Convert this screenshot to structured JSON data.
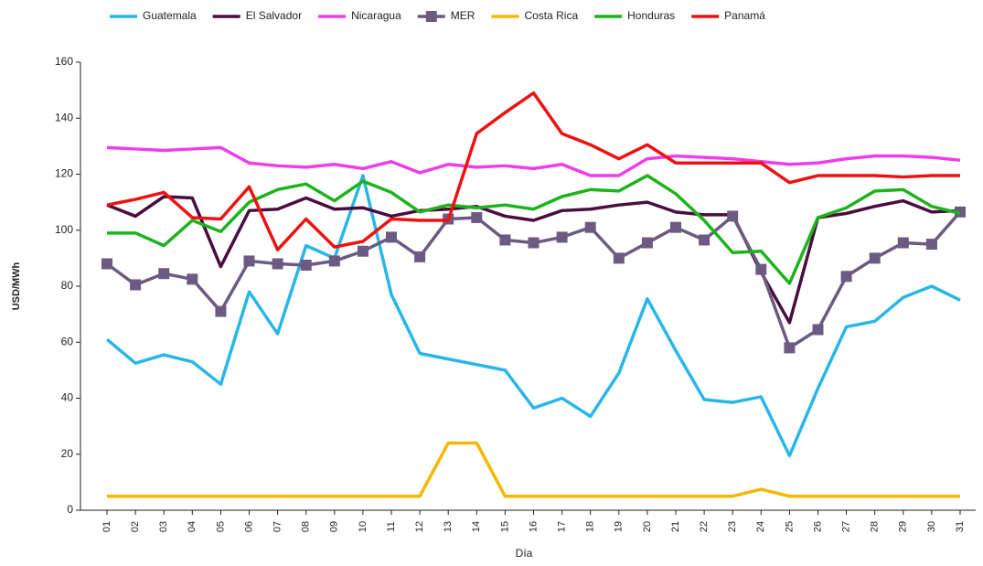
{
  "chart_data": {
    "type": "line",
    "categories": [
      "01",
      "02",
      "03",
      "04",
      "05",
      "06",
      "07",
      "08",
      "09",
      "10",
      "11",
      "12",
      "13",
      "14",
      "15",
      "16",
      "17",
      "18",
      "19",
      "20",
      "21",
      "22",
      "23",
      "24",
      "25",
      "26",
      "27",
      "28",
      "29",
      "30",
      "31"
    ],
    "x_label": "Día",
    "y_label": "USD/MWh",
    "ylim": [
      0,
      160
    ],
    "yticks": [
      0,
      20,
      40,
      60,
      80,
      100,
      120,
      140,
      160
    ],
    "series": [
      {
        "name": "Guatemala",
        "color": "#29b6e8",
        "values": [
          61,
          52.5,
          55.5,
          53,
          45,
          78,
          63,
          94.5,
          90,
          119.5,
          77,
          56,
          54,
          52,
          50,
          36.5,
          40,
          33.5,
          49,
          75.5,
          57,
          39.5,
          38.5,
          40.5,
          19.5,
          43.5,
          65.5,
          67.5,
          76,
          80,
          75
        ]
      },
      {
        "name": "El Salvador",
        "color": "#4a0d3f",
        "values": [
          109,
          105,
          112,
          111.5,
          87,
          107,
          107.5,
          111.5,
          107.5,
          108,
          105,
          107,
          107.5,
          108.5,
          105,
          103.5,
          107,
          107.5,
          109,
          110,
          106.5,
          105.5,
          105.5,
          85,
          67,
          104.5,
          106,
          108.5,
          110.5,
          106.5,
          107
        ]
      },
      {
        "name": "Nicaragua",
        "color": "#ee3ee8",
        "values": [
          129.5,
          129,
          128.5,
          129,
          129.5,
          124,
          123,
          122.5,
          123.5,
          122,
          124.5,
          120.5,
          123.5,
          122.5,
          123,
          122,
          123.5,
          119.5,
          119.5,
          125.5,
          126.5,
          126,
          125.5,
          124.5,
          123.5,
          124,
          125.5,
          126.5,
          126.5,
          126,
          125
        ]
      },
      {
        "name": "MER",
        "color": "#6c5a82",
        "marker": "square",
        "values": [
          88,
          80.5,
          84.5,
          82.5,
          71,
          89,
          88,
          87.5,
          89,
          92.5,
          97.5,
          90.5,
          104,
          104.5,
          96.5,
          95.5,
          97.5,
          101,
          90,
          95.5,
          101,
          96.5,
          105,
          86,
          58,
          64.5,
          83.5,
          90,
          95.5,
          95,
          106.5
        ]
      },
      {
        "name": "Costa Rica",
        "color": "#f5b800",
        "values": [
          5,
          5,
          5,
          5,
          5,
          5,
          5,
          5,
          5,
          5,
          5,
          5,
          24,
          24,
          5,
          5,
          5,
          5,
          5,
          5,
          5,
          5,
          5,
          7.5,
          5,
          5,
          5,
          5,
          5,
          5,
          5
        ]
      },
      {
        "name": "Honduras",
        "color": "#1cb31c",
        "values": [
          99,
          99,
          94.5,
          103.5,
          99.5,
          110,
          114.5,
          116.5,
          110.5,
          117.5,
          113.5,
          106.5,
          109,
          108,
          109,
          107.5,
          112,
          114.5,
          114,
          119.5,
          113,
          103.5,
          92,
          92.5,
          81,
          104.5,
          108,
          114,
          114.5,
          108.5,
          106
        ]
      },
      {
        "name": "Panamá",
        "color": "#ee1111",
        "values": [
          109,
          111,
          113.5,
          104.5,
          104,
          115.5,
          93,
          104,
          94,
          96,
          104,
          103.5,
          103.5,
          134.5,
          142,
          149,
          134.5,
          130.5,
          125.5,
          130.5,
          124,
          124,
          124,
          124,
          117,
          119.5,
          119.5,
          119.5,
          119,
          119.5,
          119.5
        ]
      }
    ]
  }
}
